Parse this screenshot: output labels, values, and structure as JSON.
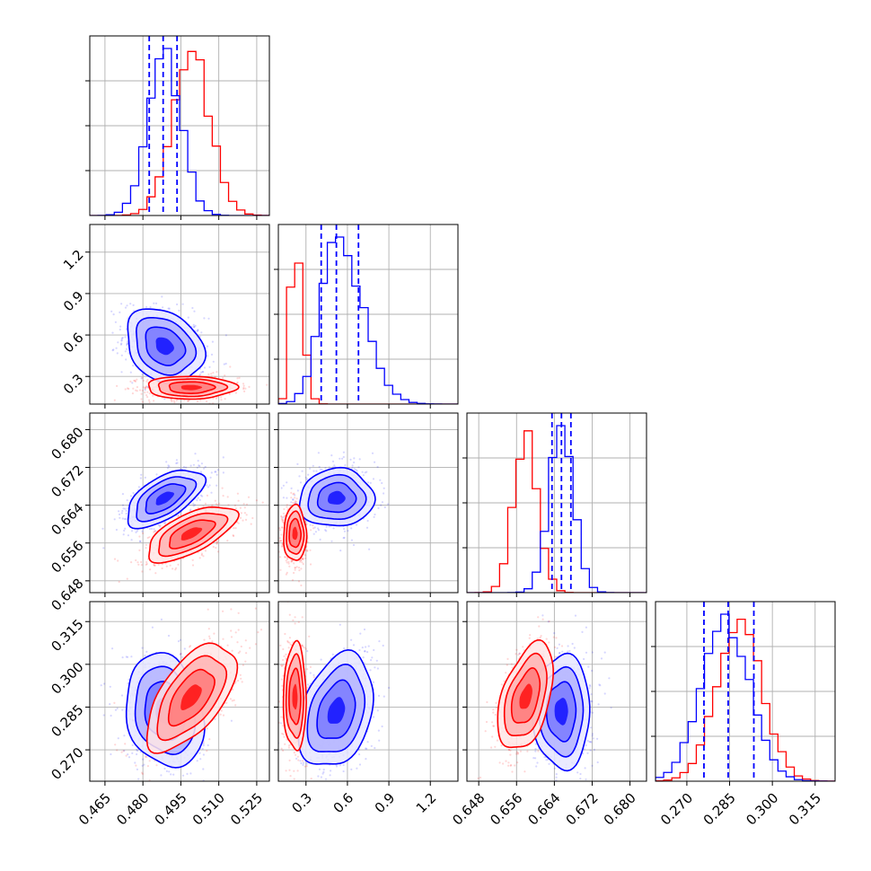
{
  "chart_data": {
    "type": "corner",
    "grid": true,
    "colors": {
      "series_a": "#0000ff",
      "series_b": "#ff0000"
    },
    "series": [
      {
        "color": "#0000ff",
        "means": [
          0.4885,
          0.52,
          0.6655,
          0.2835
        ],
        "sigmas": [
          0.0065,
          0.115,
          0.0026,
          0.0085
        ],
        "correlations": {
          "1,0": -0.25,
          "2,0": 0.6,
          "2,1": 0.05,
          "3,0": -0.2,
          "3,1": 0.3,
          "3,2": 0.0
        },
        "quantiles": [
          [
            0.4825,
            0.488,
            0.4935
          ],
          [
            0.41,
            0.52,
            0.68
          ],
          [
            0.6635,
            0.6655,
            0.6675
          ],
          [
            0.276,
            0.2845,
            0.2935
          ]
        ]
      },
      {
        "color": "#ff0000",
        "means": [
          0.499,
          0.22,
          0.658,
          0.2885
        ],
        "sigmas": [
          0.0075,
          0.035,
          0.0025,
          0.008
        ],
        "correlations": {
          "1,0": 0.0,
          "2,0": 0.65,
          "2,1": 0.0,
          "3,0": 0.6,
          "3,1": 0.0,
          "3,2": 0.45
        },
        "quantiles": null
      }
    ],
    "params": [
      {
        "range": [
          0.459,
          0.53
        ],
        "ticks": [
          "0.465",
          "0.480",
          "0.495",
          "0.510",
          "0.525"
        ]
      },
      {
        "range": [
          0.1,
          1.4
        ],
        "ticks": [
          "0.3",
          "0.6",
          "0.9",
          "1.2"
        ]
      },
      {
        "range": [
          0.6455,
          0.6835
        ],
        "ticks": [
          "0.648",
          "0.656",
          "0.664",
          "0.672",
          "0.680"
        ]
      },
      {
        "range": [
          0.259,
          0.322
        ],
        "ticks": [
          "0.270",
          "0.285",
          "0.300",
          "0.315"
        ]
      }
    ],
    "title": "",
    "xlabel": "",
    "ylabel": ""
  }
}
